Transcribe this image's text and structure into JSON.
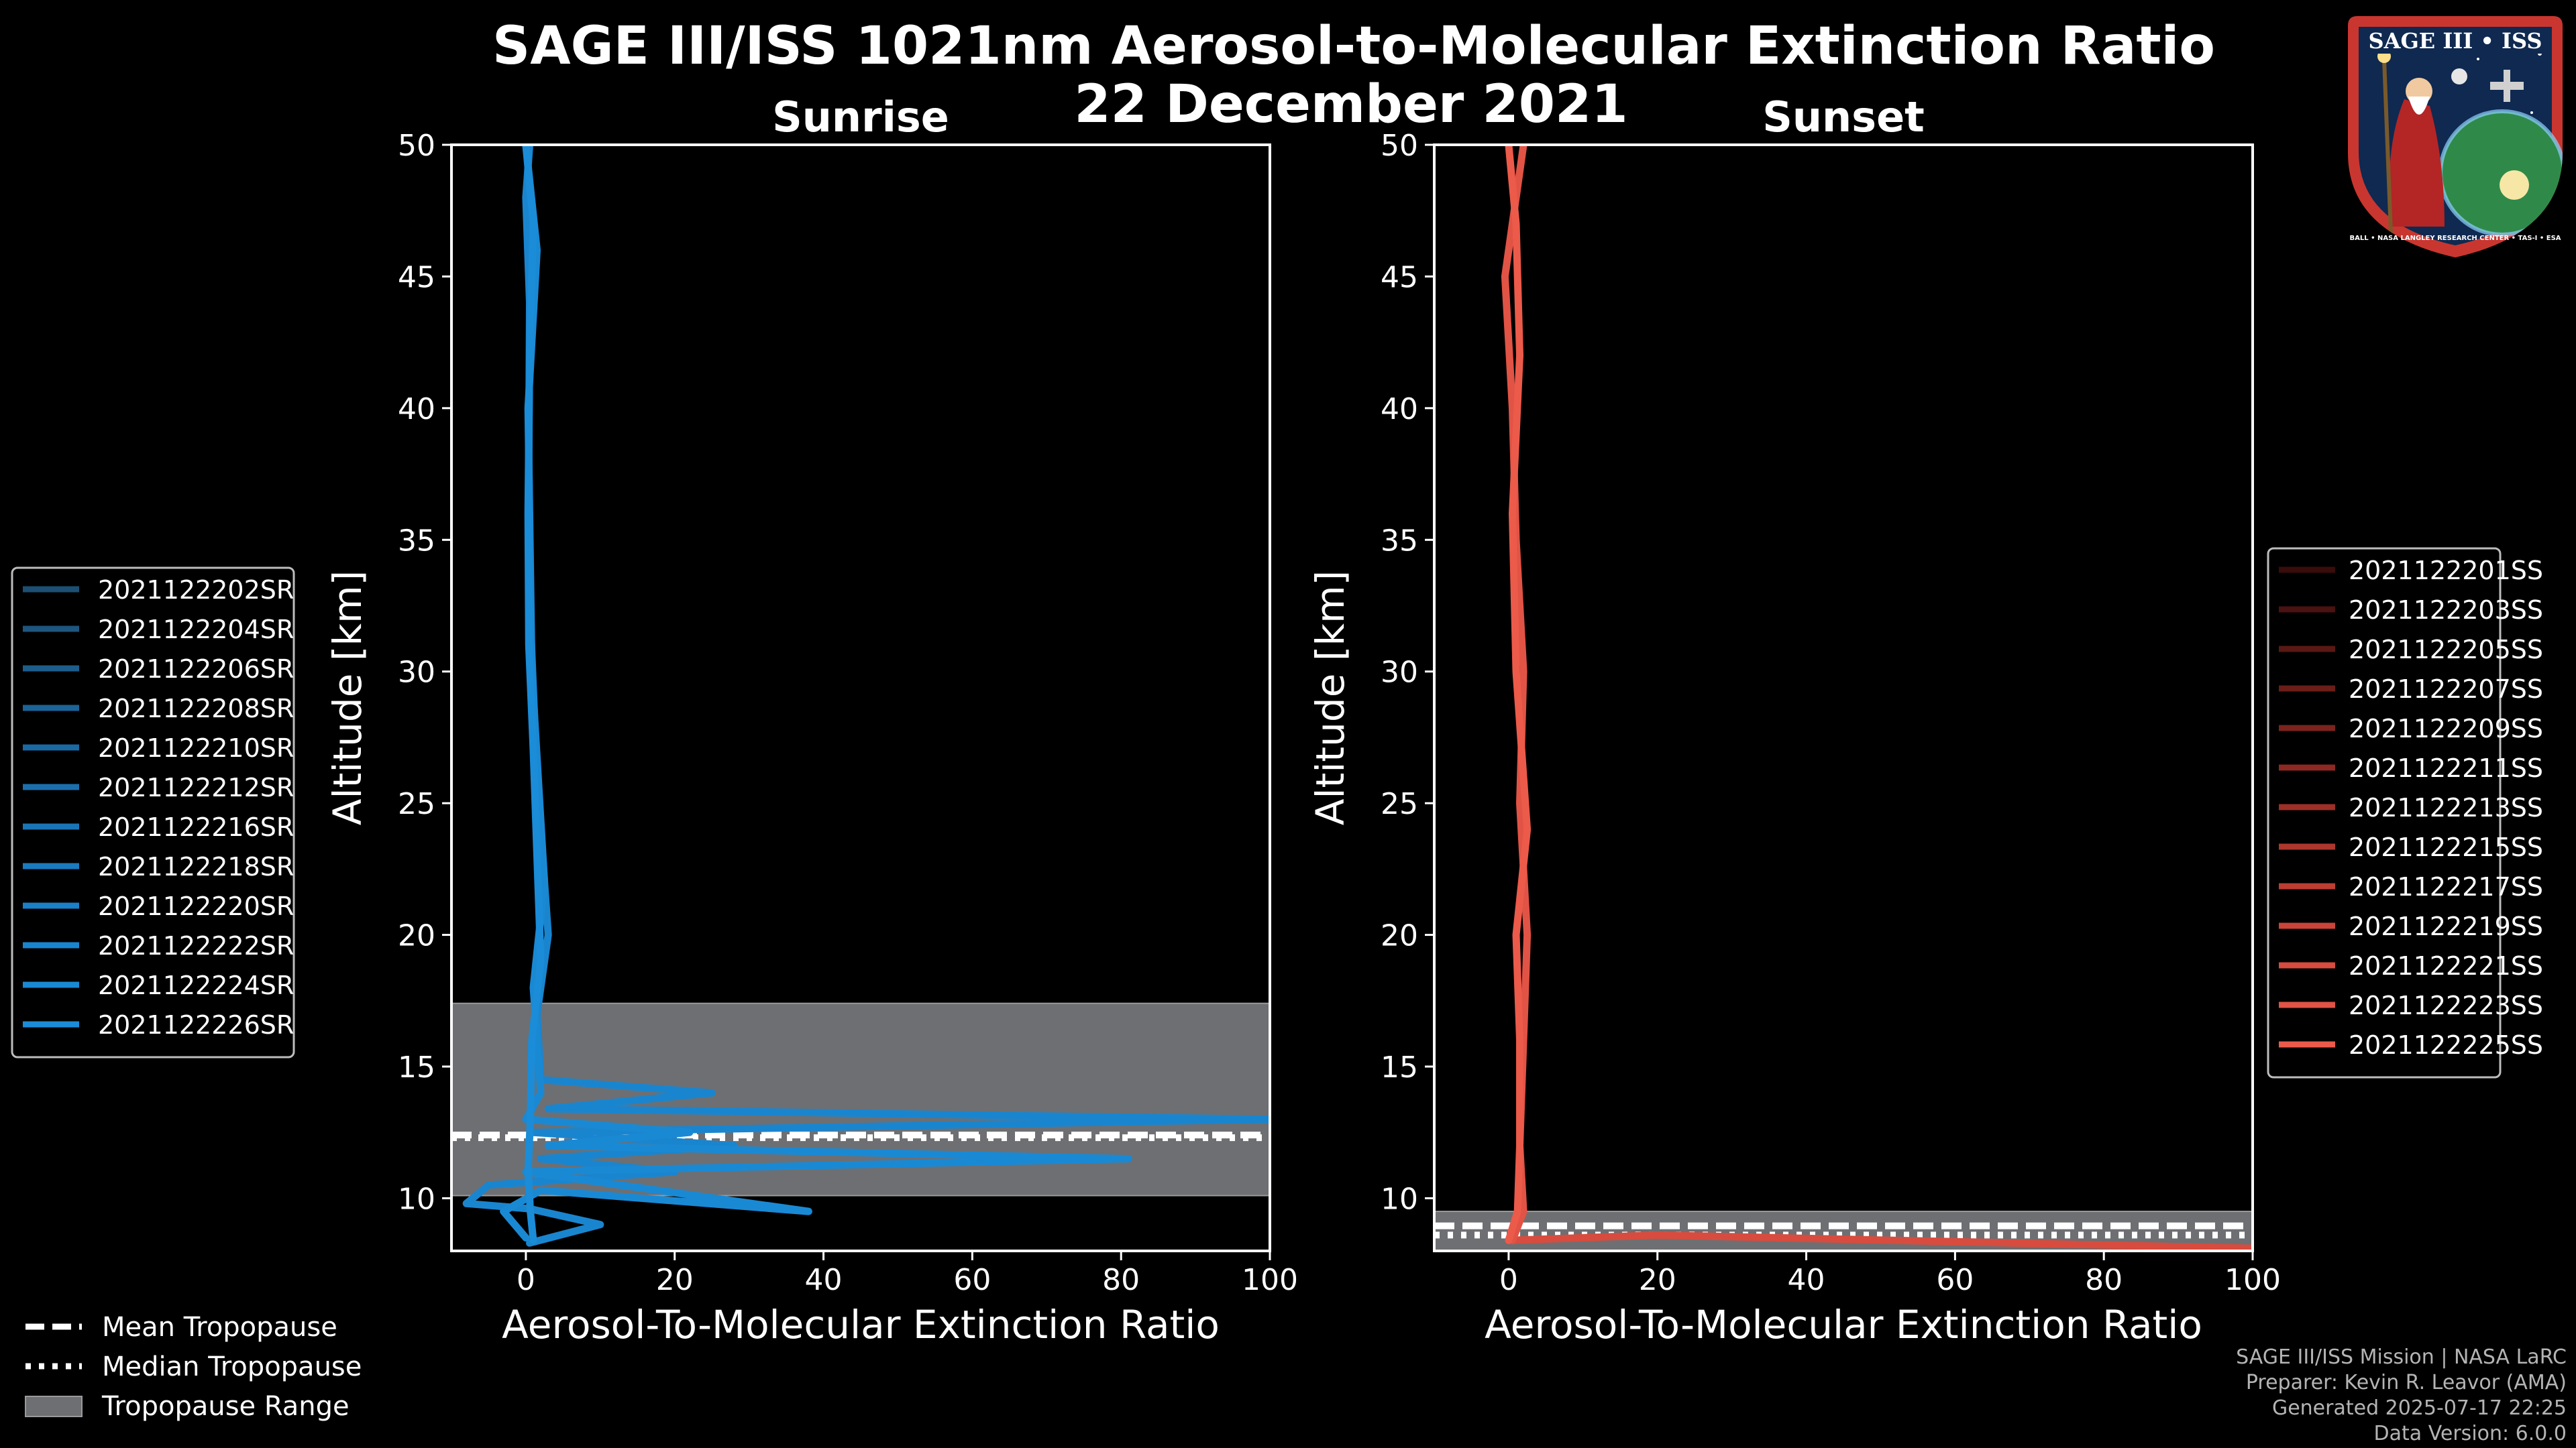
{
  "title_line1": "SAGE III/ISS 1021nm Aerosol-to-Molecular Extinction Ratio",
  "title_line2": "22 December 2021",
  "logo": {
    "name": "SAGE III • ISS",
    "caption": "BALL • NASA LANGLEY RESEARCH CENTER • TAS-I • ESA"
  },
  "credits": [
    "SAGE III/ISS Mission | NASA LaRC",
    "Preparer: Kevin R. Leavor (AMA)",
    "Generated 2025-07-17 22:25",
    "Data Version: 6.0.0"
  ],
  "colors": {
    "background": "#000000",
    "sunrise": "#1a8cd8",
    "sunset": "#ec5a4a",
    "tropopause_band": "#6e6f72"
  },
  "tropopause_legend": {
    "mean": "Mean Tropopause",
    "median": "Median Tropopause",
    "range": "Tropopause Range"
  },
  "chart_data": [
    {
      "type": "line",
      "panel": "Sunrise",
      "title": "Sunrise",
      "xlabel": "Aerosol-To-Molecular Extinction Ratio",
      "ylabel": "Altitude [km]",
      "xlim": [
        -10,
        100
      ],
      "ylim": [
        8,
        50
      ],
      "xticks": [
        0,
        20,
        40,
        60,
        80,
        100
      ],
      "yticks": [
        10,
        15,
        20,
        25,
        30,
        35,
        40,
        45,
        50
      ],
      "tropopause": {
        "range": [
          10.1,
          17.4
        ],
        "mean": 12.4,
        "median": 12.3
      },
      "legend_position": "left",
      "series": [
        {
          "name": "2021122202SR",
          "color": "#1d4f73"
        },
        {
          "name": "2021122204SR",
          "color": "#1d5680"
        },
        {
          "name": "2021122206SR",
          "color": "#1c5d8c"
        },
        {
          "name": "2021122208SR",
          "color": "#1c6398"
        },
        {
          "name": "2021122210SR",
          "color": "#1b69a3"
        },
        {
          "name": "2021122212SR",
          "color": "#1b6fad"
        },
        {
          "name": "2021122216SR",
          "color": "#1a75b7"
        },
        {
          "name": "2021122218SR",
          "color": "#1a7bc0"
        },
        {
          "name": "2021122220SR",
          "color": "#1a80c8"
        },
        {
          "name": "2021122222SR",
          "color": "#1a85cf",
          "profile": [
            [
              0.5,
              8.3
            ],
            [
              10,
              9
            ],
            [
              0.5,
              9.6
            ],
            [
              -8,
              9.8
            ],
            [
              -5,
              10.5
            ],
            [
              20,
              11
            ],
            [
              2,
              11.5
            ],
            [
              28,
              12
            ],
            [
              1,
              12.5
            ],
            [
              100,
              13
            ],
            [
              3,
              13.4
            ],
            [
              25,
              14
            ],
            [
              2,
              14.5
            ],
            [
              1.5,
              17
            ],
            [
              3,
              20
            ],
            [
              2,
              24
            ],
            [
              1.2,
              28
            ],
            [
              0.6,
              32
            ],
            [
              0.4,
              38
            ],
            [
              0.5,
              44
            ],
            [
              0,
              48
            ],
            [
              0.5,
              50
            ]
          ]
        },
        {
          "name": "2021122224SR",
          "color": "#1a89d4",
          "profile": [
            [
              0,
              8.5
            ],
            [
              -3,
              9.5
            ],
            [
              2,
              10.3
            ],
            [
              38,
              9.5
            ],
            [
              0,
              11
            ],
            [
              81,
              11.5
            ],
            [
              3,
              12
            ],
            [
              22,
              12.5
            ],
            [
              0,
              13
            ],
            [
              2,
              14
            ],
            [
              1,
              18
            ],
            [
              2.5,
              22
            ],
            [
              0.8,
              30
            ],
            [
              0.3,
              40
            ],
            [
              1.5,
              46
            ],
            [
              0,
              50
            ]
          ]
        },
        {
          "name": "2021122226SR",
          "color": "#1a8cd8",
          "profile": [
            [
              1,
              8.4
            ],
            [
              0.6,
              9.5
            ],
            [
              0.3,
              11
            ],
            [
              0.6,
              13
            ],
            [
              0.8,
              16
            ],
            [
              2,
              19
            ],
            [
              1.5,
              23
            ],
            [
              1,
              27
            ],
            [
              0.4,
              31
            ],
            [
              0.3,
              36
            ],
            [
              0.5,
              42
            ],
            [
              1,
              47
            ],
            [
              0,
              50
            ]
          ]
        }
      ]
    },
    {
      "type": "line",
      "panel": "Sunset",
      "title": "Sunset",
      "xlabel": "Aerosol-To-Molecular Extinction Ratio",
      "ylabel": "Altitude [km]",
      "xlim": [
        -10,
        100
      ],
      "ylim": [
        8,
        50
      ],
      "xticks": [
        0,
        20,
        40,
        60,
        80,
        100
      ],
      "yticks": [
        10,
        15,
        20,
        25,
        30,
        35,
        40,
        45,
        50
      ],
      "tropopause": {
        "range": [
          8.0,
          9.5
        ],
        "mean": 8.95,
        "median": 8.6
      },
      "legend_position": "right",
      "series": [
        {
          "name": "2021122201SS",
          "color": "#3a0c0c"
        },
        {
          "name": "2021122203SS",
          "color": "#4a1210"
        },
        {
          "name": "2021122205SS",
          "color": "#5a1814"
        },
        {
          "name": "2021122207SS",
          "color": "#6b1d18"
        },
        {
          "name": "2021122209SS",
          "color": "#7b231d"
        },
        {
          "name": "2021122211SS",
          "color": "#8c2922"
        },
        {
          "name": "2021122213SS",
          "color": "#9c2f27"
        },
        {
          "name": "2021122215SS",
          "color": "#ad362d"
        },
        {
          "name": "2021122217SS",
          "color": "#bd3d33"
        },
        {
          "name": "2021122219SS",
          "color": "#cb4439"
        },
        {
          "name": "2021122221SS",
          "color": "#d74c3f",
          "profile": [
            [
              0,
              8.4
            ],
            [
              20,
              8.6
            ],
            [
              100,
              8.1
            ]
          ]
        },
        {
          "name": "2021122223SS",
          "color": "#e15345",
          "profile": [
            [
              0.5,
              8.4
            ],
            [
              2,
              9.5
            ],
            [
              1.5,
              12
            ],
            [
              2,
              16
            ],
            [
              2.5,
              20
            ],
            [
              1.5,
              25
            ],
            [
              2,
              30
            ],
            [
              1,
              35
            ],
            [
              0.5,
              40
            ],
            [
              -0.5,
              45
            ],
            [
              2,
              50
            ]
          ]
        },
        {
          "name": "2021122225SS",
          "color": "#ec5a4a",
          "profile": [
            [
              0,
              8.4
            ],
            [
              1.2,
              9.5
            ],
            [
              1.5,
              12
            ],
            [
              1.5,
              16
            ],
            [
              1,
              20
            ],
            [
              2.5,
              24
            ],
            [
              1,
              30
            ],
            [
              0.5,
              36
            ],
            [
              1.5,
              42
            ],
            [
              1,
              47
            ],
            [
              0,
              50
            ]
          ]
        }
      ]
    }
  ]
}
